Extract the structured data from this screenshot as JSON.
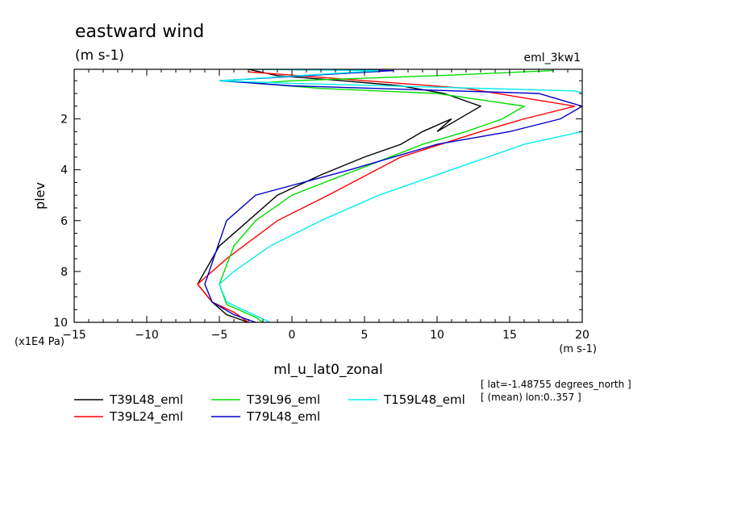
{
  "header": {
    "title": "eastward wind",
    "units": "(m s-1)",
    "experiment": "eml_3kw1"
  },
  "footer": {
    "lat_note": "[ lat=-1.48755 degrees_north ]",
    "lon_note": "[ (mean) lon:0..357 ]"
  },
  "chart_data": {
    "type": "line",
    "title": "eastward wind",
    "subtitle": "(m s-1)",
    "xlabel": "ml_u_lat0_zonal",
    "xunits": "(m s-1)",
    "ylabel": "plev",
    "yscale_label": "(x1E4 Pa)",
    "xlim": [
      -15,
      20
    ],
    "ylim": [
      0.05,
      10
    ],
    "y_inverted": true,
    "xticks": [
      -15,
      -10,
      -5,
      0,
      5,
      10,
      15,
      20
    ],
    "yticks": [
      2,
      4,
      6,
      8,
      10
    ],
    "grid": false,
    "legend_position": "bottom",
    "series": [
      {
        "name": "T39L48_eml",
        "color": "#000000",
        "x": [
          -3.0,
          -1.0,
          3.5,
          7.5,
          10.5,
          13.0,
          10.0,
          11.0,
          9.0,
          7.5,
          5.0,
          2.0,
          -1.0,
          -3.0,
          -5.0,
          -6.5,
          -5.5,
          -4.5,
          -3.0
        ],
        "y": [
          0.05,
          0.3,
          0.5,
          0.7,
          1.0,
          1.5,
          2.5,
          2.0,
          2.5,
          3.0,
          3.5,
          4.2,
          5.0,
          6.0,
          7.0,
          8.5,
          9.2,
          9.7,
          10.0
        ]
      },
      {
        "name": "T39L24_eml",
        "color": "#ff0000",
        "x": [
          -3.0,
          0.5,
          12.0,
          19.5,
          16.0,
          13.0,
          7.5,
          2.5,
          -1.0,
          -4.5,
          -6.5,
          -5.5,
          -4.0,
          -3.0
        ],
        "y": [
          0.15,
          0.3,
          0.8,
          1.5,
          2.0,
          2.5,
          3.5,
          5.0,
          6.0,
          7.5,
          8.5,
          9.2,
          9.6,
          10.0
        ]
      },
      {
        "name": "T39L96_eml",
        "color": "#00dd00",
        "x": [
          18.0,
          10.0,
          0.0,
          -2.5,
          2.0,
          10.0,
          16.0,
          14.5,
          12.0,
          9.0,
          4.5,
          0.0,
          -2.5,
          -4.0,
          -5.0,
          -4.5,
          -2.5,
          -2.0
        ],
        "y": [
          0.1,
          0.3,
          0.5,
          0.6,
          0.8,
          1.0,
          1.5,
          2.0,
          2.5,
          3.0,
          4.0,
          5.0,
          6.0,
          7.0,
          8.5,
          9.3,
          9.8,
          10.0
        ]
      },
      {
        "name": "T79L48_eml",
        "color": "#0000cc",
        "x": [
          -2.0,
          7.0,
          -5.0,
          0.0,
          17.0,
          20.0,
          18.5,
          15.0,
          10.0,
          4.0,
          -2.5,
          -4.5,
          -6.0,
          -5.5,
          -4.0,
          -2.5
        ],
        "y": [
          0.05,
          0.1,
          0.5,
          0.7,
          1.0,
          1.5,
          2.0,
          2.5,
          3.0,
          4.0,
          5.0,
          6.0,
          8.5,
          9.2,
          9.7,
          10.0
        ]
      },
      {
        "name": "T159L48_eml",
        "color": "#00eeee",
        "x": [
          -2.5,
          6.0,
          -5.0,
          0.0,
          19.5,
          24.0,
          22.0,
          20.0,
          16.0,
          11.0,
          6.0,
          2.0,
          -1.5,
          -4.0,
          -5.0,
          -4.5,
          -3.0,
          -1.5
        ],
        "y": [
          0.05,
          0.1,
          0.5,
          0.6,
          0.9,
          1.5,
          2.0,
          2.5,
          3.0,
          4.0,
          5.0,
          6.0,
          7.0,
          8.0,
          8.5,
          9.2,
          9.6,
          10.0
        ]
      }
    ]
  }
}
